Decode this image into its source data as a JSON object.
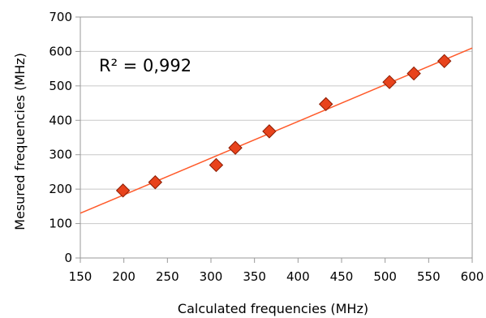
{
  "chart_data": {
    "type": "scatter",
    "xlabel": "Calculated frequencies (MHz)",
    "ylabel": "Mesured frequencies (MHz)",
    "xlim": [
      150,
      600
    ],
    "ylim": [
      0,
      700
    ],
    "xticks": [
      150,
      200,
      250,
      300,
      350,
      400,
      450,
      500,
      550,
      600
    ],
    "yticks": [
      0,
      100,
      200,
      300,
      400,
      500,
      600,
      700
    ],
    "grid": true,
    "annotation": "R² = 0,992",
    "points": [
      {
        "x": 199,
        "y": 196
      },
      {
        "x": 236,
        "y": 220
      },
      {
        "x": 306,
        "y": 270
      },
      {
        "x": 328,
        "y": 320
      },
      {
        "x": 367,
        "y": 368
      },
      {
        "x": 432,
        "y": 447
      },
      {
        "x": 505,
        "y": 511
      },
      {
        "x": 533,
        "y": 536
      },
      {
        "x": 568,
        "y": 572
      }
    ],
    "trendline": {
      "type": "linear",
      "from": [
        150,
        130
      ],
      "to": [
        600,
        610
      ]
    },
    "colors": {
      "marker_fill": "#e8431c",
      "marker_stroke": "#8a1a00",
      "trendline": "#ff5a2a",
      "grid": "#c8c8c8",
      "axis": "#999999"
    }
  }
}
